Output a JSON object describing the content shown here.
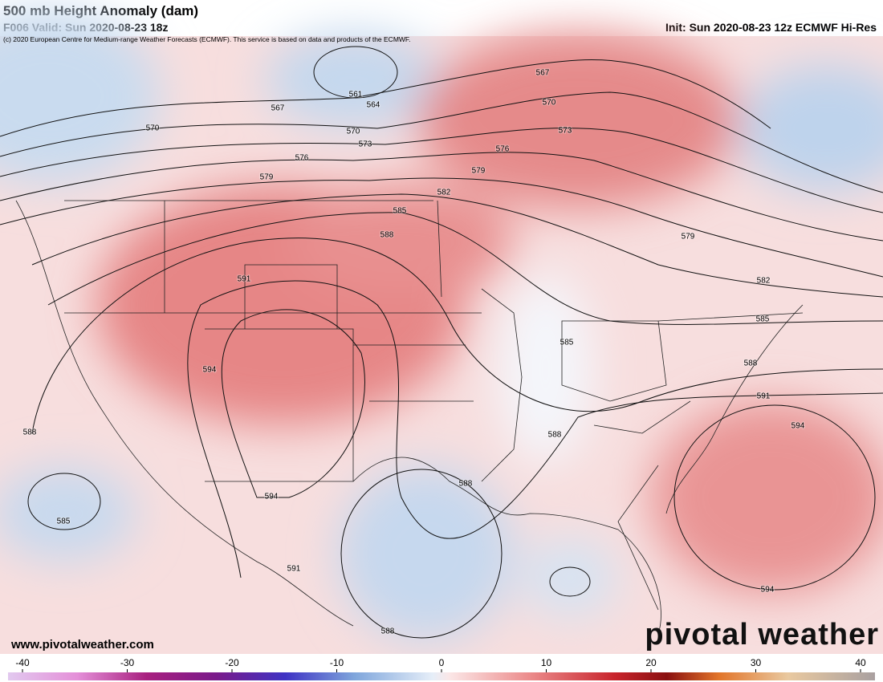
{
  "header": {
    "title": "500 mb Height Anomaly (dam)",
    "valid": "F006 Valid: Sun 2020-08-23 18z",
    "init": "Init: Sun 2020-08-23 12z ECMWF Hi-Res",
    "copyright": "(c) 2020 European Centre for Medium-range Weather Forecasts (ECMWF). This service is based on data and products of the ECMWF."
  },
  "contours": [
    567,
    567,
    561,
    564,
    570,
    570,
    570,
    573,
    573,
    576,
    576,
    579,
    579,
    579,
    582,
    582,
    585,
    585,
    585,
    588,
    588,
    588,
    588,
    588,
    588,
    591,
    591,
    591,
    594,
    594,
    594,
    594,
    585
  ],
  "footer": {
    "website": "www.pivotalweather.com",
    "logo": "pivotal weather"
  },
  "colorbar": {
    "range": [
      -40,
      40
    ],
    "ticks": [
      -40,
      -30,
      -20,
      -10,
      0,
      10,
      20,
      30,
      40
    ]
  }
}
